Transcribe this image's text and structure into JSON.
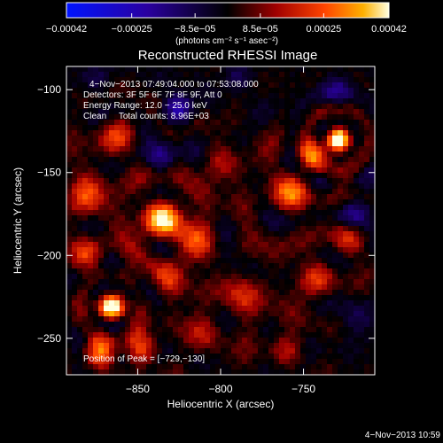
{
  "chart_data": {
    "type": "heatmap",
    "title": "Reconstructed RHESSI Image",
    "xlabel": "Heliocentric X (arcsec)",
    "ylabel": "Heliocentric Y (arcsec)",
    "xlim": [
      -893,
      -707
    ],
    "ylim": [
      -272,
      -86
    ],
    "x_ticks": [
      -850,
      -800,
      -750
    ],
    "x_tick_labels": [
      "−850",
      "−800",
      "−750"
    ],
    "y_ticks": [
      -100,
      -150,
      -200,
      -250
    ],
    "y_tick_labels": [
      "−100",
      "−150",
      "−200",
      "−250"
    ],
    "colorbar": {
      "min": -0.00042,
      "max": 0.00042,
      "ticks": [
        -0.00042,
        -0.00025,
        -8.5e-05,
        8.5e-05,
        0.00025,
        0.00042
      ],
      "tick_labels": [
        "−0.00042",
        "−0.00025",
        "−8.5e−05",
        "8.5e−05",
        "0.00025",
        "0.00042"
      ],
      "unit_label": "(photons cm⁻² s⁻¹ asec⁻²)"
    },
    "annotations": [
      "4−Nov−2013 07:49:04.000 to 07:53:08.000",
      "Detectors: 3F 5F 6F 7F 8F 9F, Att 0",
      "Energy Range: 12.0 − 25.0 keV",
      "Clean     Total counts: 8.96E+03",
      "Position of Peak = [−729,−130]"
    ],
    "peak": {
      "x": -729,
      "y": -130
    },
    "sources": [
      {
        "x": -729,
        "y": -130,
        "amp": 1.0,
        "sigma": 6
      },
      {
        "x": -835,
        "y": -178,
        "amp": 0.95,
        "sigma": 9
      },
      {
        "x": -866,
        "y": -231,
        "amp": 0.85,
        "sigma": 6
      },
      {
        "x": -817,
        "y": -188,
        "amp": 0.45,
        "sigma": 10
      },
      {
        "x": -758,
        "y": -163,
        "amp": 0.55,
        "sigma": 10
      },
      {
        "x": -745,
        "y": -140,
        "amp": 0.45,
        "sigma": 8
      },
      {
        "x": -872,
        "y": -258,
        "amp": 0.55,
        "sigma": 8
      },
      {
        "x": -850,
        "y": -255,
        "amp": 0.45,
        "sigma": 8
      },
      {
        "x": -880,
        "y": -163,
        "amp": 0.55,
        "sigma": 10
      },
      {
        "x": -862,
        "y": -128,
        "amp": 0.4,
        "sigma": 9
      },
      {
        "x": -800,
        "y": -145,
        "amp": 0.35,
        "sigma": 9
      },
      {
        "x": -785,
        "y": -225,
        "amp": 0.45,
        "sigma": 10
      },
      {
        "x": -742,
        "y": -215,
        "amp": 0.45,
        "sigma": 9
      },
      {
        "x": -722,
        "y": -190,
        "amp": 0.35,
        "sigma": 8
      },
      {
        "x": -812,
        "y": -248,
        "amp": 0.3,
        "sigma": 9
      },
      {
        "x": -880,
        "y": -200,
        "amp": 0.4,
        "sigma": 9
      },
      {
        "x": -832,
        "y": -215,
        "amp": 0.4,
        "sigma": 9
      },
      {
        "x": -760,
        "y": -258,
        "amp": 0.3,
        "sigma": 8
      },
      {
        "x": -826,
        "y": -112,
        "amp": -0.45,
        "sigma": 7
      },
      {
        "x": -836,
        "y": -142,
        "amp": -0.35,
        "sigma": 7
      },
      {
        "x": -720,
        "y": -175,
        "amp": -0.3,
        "sigma": 8
      },
      {
        "x": -730,
        "y": -100,
        "amp": -0.3,
        "sigma": 8
      },
      {
        "x": -875,
        "y": -95,
        "amp": -0.2,
        "sigma": 7
      },
      {
        "x": -718,
        "y": -236,
        "amp": -0.25,
        "sigma": 8
      },
      {
        "x": -790,
        "y": -92,
        "amp": -0.2,
        "sigma": 7
      }
    ]
  },
  "footer": {
    "timestamp": "4−Nov−2013 10:59"
  }
}
